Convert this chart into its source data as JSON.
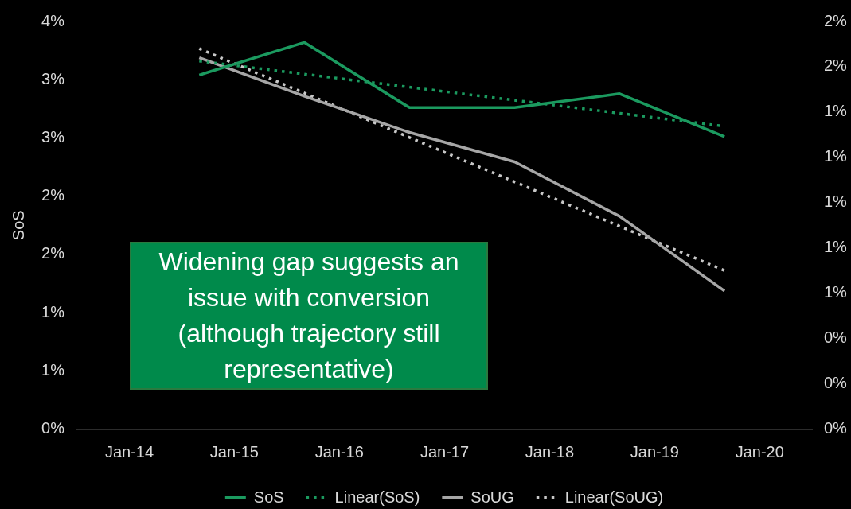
{
  "chart_data": {
    "type": "line",
    "x": [
      "2014-09",
      "2015-09",
      "2016-09",
      "2017-09",
      "2018-09",
      "2019-09"
    ],
    "series": [
      {
        "name": "SoS",
        "color": "#1b9a5f",
        "values": [
          3.04,
          3.32,
          2.76,
          2.76,
          2.88,
          2.51
        ]
      },
      {
        "name": "Linear(SoS)",
        "type": "line",
        "color": "#1b9a5f",
        "line_style": "dotted",
        "x": [
          "2014-09",
          "2019-09"
        ],
        "values": [
          3.16,
          2.6
        ]
      },
      {
        "name": "SoUG",
        "color": "#a6a6a6",
        "axis": "y2",
        "values": [
          1.64,
          1.47,
          1.31,
          1.18,
          0.94,
          0.61
        ]
      },
      {
        "name": "Linear(SoUG)",
        "type": "line",
        "color": "#c8c8c8",
        "line_style": "dotted",
        "axis": "y2",
        "x": [
          "2014-09",
          "2019-09"
        ],
        "values": [
          1.68,
          0.7
        ]
      }
    ],
    "ylabel": "SoS",
    "xlim": [
      "2013-07",
      "2020-07"
    ],
    "xticks": [
      {
        "value": "2014-01",
        "label": "Jan-14"
      },
      {
        "value": "2015-01",
        "label": "Jan-15"
      },
      {
        "value": "2016-01",
        "label": "Jan-16"
      },
      {
        "value": "2017-01",
        "label": "Jan-17"
      },
      {
        "value": "2018-01",
        "label": "Jan-18"
      },
      {
        "value": "2019-01",
        "label": "Jan-19"
      },
      {
        "value": "2020-01",
        "label": "Jan-20"
      }
    ],
    "ylim": [
      0,
      3.5
    ],
    "yticks": [
      {
        "value": 0,
        "label": "0%"
      },
      {
        "value": 0.5,
        "label": "1%"
      },
      {
        "value": 1,
        "label": "1%"
      },
      {
        "value": 1.5,
        "label": "2%"
      },
      {
        "value": 2,
        "label": "2%"
      },
      {
        "value": 2.5,
        "label": "3%"
      },
      {
        "value": 3,
        "label": "3%"
      },
      {
        "value": 3.5,
        "label": "4%"
      }
    ],
    "y2lim": [
      0,
      1.8
    ],
    "y2ticks": [
      {
        "value": 0,
        "label": "0%"
      },
      {
        "value": 0.2,
        "label": "0%"
      },
      {
        "value": 0.4,
        "label": "0%"
      },
      {
        "value": 0.6,
        "label": "1%"
      },
      {
        "value": 0.8,
        "label": "1%"
      },
      {
        "value": 1,
        "label": "1%"
      },
      {
        "value": 1.2,
        "label": "1%"
      },
      {
        "value": 1.4,
        "label": "1%"
      },
      {
        "value": 1.6,
        "label": "2%"
      },
      {
        "value": 1.8,
        "label": "2%"
      }
    ],
    "legend": "bottom",
    "grid": false,
    "marker": "none",
    "annotations": [
      "Widening gap suggests an issue with conversion (although trajectory still representative)"
    ]
  }
}
